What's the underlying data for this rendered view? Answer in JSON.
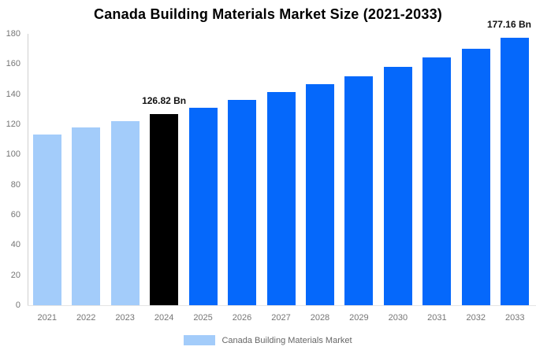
{
  "chart_data": {
    "type": "bar",
    "title": "Canada Building Materials Market Size (2021-2033)",
    "categories": [
      "2021",
      "2022",
      "2023",
      "2024",
      "2025",
      "2026",
      "2027",
      "2028",
      "2029",
      "2030",
      "2031",
      "2032",
      "2033"
    ],
    "series": [
      {
        "name": "Canada Building Materials Market",
        "values": [
          113.4,
          117.8,
          122.2,
          126.82,
          131.2,
          136.0,
          141.2,
          146.6,
          152.0,
          158.1,
          164.2,
          170.3,
          177.16
        ]
      }
    ],
    "bar_colors": [
      "#a3ccfa",
      "#a3ccfa",
      "#a3ccfa",
      "#000000",
      "#0568fb",
      "#0568fb",
      "#0568fb",
      "#0568fb",
      "#0568fb",
      "#0568fb",
      "#0568fb",
      "#0568fb",
      "#0568fb"
    ],
    "colors": {
      "historical": "#a3ccfa",
      "base_year": "#000000",
      "forecast": "#0568fb"
    },
    "annotations": [
      {
        "category": "2024",
        "text": "126.82 Bn"
      },
      {
        "category": "2033",
        "text": "177.16 Bn"
      }
    ],
    "xlabel": "",
    "ylabel": "",
    "ylim": [
      0,
      180
    ],
    "yticks": [
      0,
      20,
      40,
      60,
      80,
      100,
      120,
      140,
      160,
      180
    ],
    "grid": "off",
    "legend": {
      "position": "bottom",
      "items": [
        {
          "label": "Canada Building Materials Market",
          "swatch_color": "#a3ccfa"
        }
      ]
    }
  }
}
